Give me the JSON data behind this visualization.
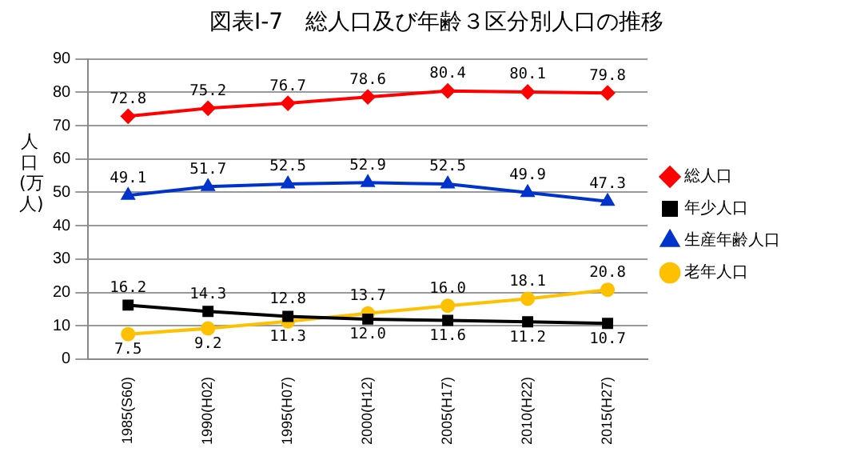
{
  "chart_data": {
    "type": "line",
    "title": "図表Ⅰ-7　総人口及び年齢３区分別人口の推移",
    "ylabel": "人口(万人)",
    "categories": [
      "1985(S60)",
      "1990(H02)",
      "1995(H07)",
      "2000(H12)",
      "2005(H17)",
      "2010(H22)",
      "2015(H27)"
    ],
    "series": [
      {
        "name": "総人口",
        "color": "#ff0000",
        "marker": "diamond",
        "values": [
          72.8,
          75.2,
          76.7,
          78.6,
          80.4,
          80.1,
          79.8
        ],
        "value_labels": [
          "72.8",
          "75.2",
          "76.7",
          "78.6",
          "80.4",
          "80.1",
          "79.8"
        ]
      },
      {
        "name": "年少人口",
        "color": "#000000",
        "marker": "square",
        "values": [
          16.2,
          14.3,
          12.8,
          12.0,
          11.6,
          11.2,
          10.7
        ],
        "value_labels": [
          "16.2",
          "14.3",
          "12.8",
          "12.0",
          "11.6",
          "11.2",
          "10.7"
        ]
      },
      {
        "name": "生産年齢人口",
        "color": "#0033cc",
        "marker": "triangle",
        "values": [
          49.1,
          51.7,
          52.5,
          52.9,
          52.5,
          49.9,
          47.3
        ],
        "value_labels": [
          "49.1",
          "51.7",
          "52.5",
          "52.9",
          "52.5",
          "49.9",
          "47.3"
        ]
      },
      {
        "name": "老年人口",
        "color": "#ffc000",
        "marker": "circle",
        "values": [
          7.5,
          9.2,
          11.3,
          13.7,
          16.0,
          18.1,
          20.8
        ],
        "value_labels": [
          "7.5",
          "9.2",
          "11.3",
          "13.7",
          "16.0",
          "18.1",
          "20.8"
        ]
      }
    ],
    "ylim": [
      0,
      90
    ],
    "yticks": [
      0,
      10,
      20,
      30,
      40,
      50,
      60,
      70,
      80,
      90
    ],
    "grid": "y",
    "legend": "right"
  }
}
